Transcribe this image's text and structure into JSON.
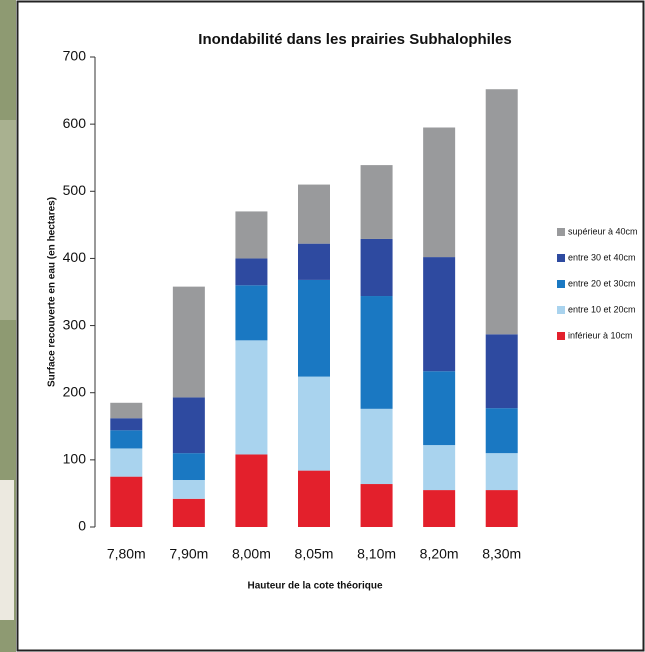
{
  "chart_data": {
    "type": "stacked-bar",
    "title": "Inondabilité dans les prairies Subhalophiles",
    "x_label": "Hauteur de la cote théorique",
    "y_label": "Surface recouverte en eau (en hectares)",
    "categories": [
      "7,80m",
      "7,90m",
      "8,00m",
      "8,05m",
      "8,10m",
      "8,20m",
      "8,30m"
    ],
    "series": [
      {
        "name": "inférieur à 10cm",
        "color": "#e3202c",
        "values": [
          75,
          42,
          108,
          84,
          64,
          55,
          55
        ]
      },
      {
        "name": "entre 10 et 20cm",
        "color": "#a9d3ee",
        "values": [
          42,
          28,
          170,
          140,
          112,
          67,
          55
        ]
      },
      {
        "name": "entre 20 et 30cm",
        "color": "#1a78c2",
        "values": [
          27,
          40,
          82,
          144,
          168,
          110,
          67
        ]
      },
      {
        "name": "entre 30 et 40cm",
        "color": "#2e4aa0",
        "values": [
          18,
          83,
          40,
          54,
          85,
          170,
          110
        ]
      },
      {
        "name": "supérieur à 40cm",
        "color": "#999a9c",
        "values": [
          23,
          165,
          70,
          88,
          110,
          193,
          365
        ]
      }
    ],
    "ylim": [
      0,
      700
    ],
    "yticks": [
      0,
      100,
      200,
      300,
      400,
      500,
      600,
      700
    ],
    "grid": false,
    "legend": "right"
  }
}
